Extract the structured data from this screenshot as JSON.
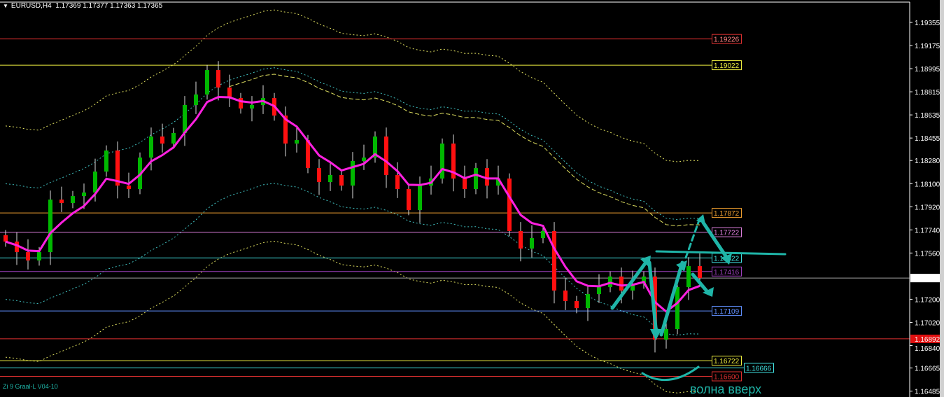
{
  "header": {
    "symbol": "EURUSD,H4",
    "ohlc": "1.17369 1.17377 1.17363 1.17365"
  },
  "indicator_name": "Zi 9 Graal-L V04-10",
  "annotation_text": "волна вверх",
  "colors": {
    "bull": "#00b800",
    "bear": "#ff1010",
    "ma": "#ff20e0",
    "annotation": "#1fb5a8",
    "grid_axis": "#ffffff"
  },
  "chart_data": {
    "type": "candlestick",
    "ylim": [
      1.164,
      1.1955
    ],
    "y_ticks": [
      "1.19355",
      "1.19175",
      "1.18995",
      "1.18815",
      "1.18635",
      "1.18455",
      "1.18280",
      "1.18100",
      "1.17920",
      "1.17740",
      "1.17560",
      "1.17200",
      "1.17020",
      "1.16840",
      "1.16665",
      "1.16485"
    ],
    "current_price": "1.17365",
    "closes": [
      1.17649,
      1.17567,
      1.17502,
      1.17567,
      1.17976,
      1.17949,
      1.18003,
      1.18031,
      1.18194,
      1.18358,
      1.18085,
      1.18058,
      1.18303,
      1.18467,
      1.18412,
      1.18494,
      1.18712,
      1.18794,
      1.18984,
      1.18848,
      1.18766,
      1.18685,
      1.18712,
      1.18766,
      1.1863,
      1.18412,
      1.18439,
      1.18221,
      1.18112,
      1.18167,
      1.18085,
      1.18276,
      1.18303,
      1.18467,
      1.18167,
      1.18058,
      1.17894,
      1.18085,
      1.1814,
      1.18412,
      1.1814,
      1.18058,
      1.18221,
      1.18085,
      1.1814,
      1.17731,
      1.17595,
      1.17676,
      1.17731,
      1.17268,
      1.17186,
      1.17131,
      1.1724,
      1.17295,
      1.17377,
      1.17268,
      1.17322,
      1.17377,
      1.16886,
      1.16968,
      1.17295,
      1.17458,
      1.17365
    ],
    "levels": [
      {
        "price": "1.19226",
        "color": "#e03030",
        "text": "#ff8080"
      },
      {
        "price": "1.19022",
        "color": "#f0f040",
        "text": "#f0f040"
      },
      {
        "price": "1.17872",
        "color": "#f0a030",
        "text": "#f0a030"
      },
      {
        "price": "1.17722",
        "color": "#e080e0",
        "text": "#e080e0"
      },
      {
        "price": "1.17522",
        "color": "#40e0e0",
        "text": "#40e0e0"
      },
      {
        "price": "1.17416",
        "color": "#a040c0",
        "text": "#a040c0"
      },
      {
        "price": "1.17109",
        "color": "#6090ff",
        "text": "#6090ff"
      },
      {
        "price": "1.16722",
        "color": "#f0f040",
        "text": "#f0f040"
      },
      {
        "price": "1.16666",
        "color": "#40e0e0",
        "text": "#40e0e0"
      },
      {
        "price": "1.16600",
        "color": "#e03030",
        "text": "#e03030"
      }
    ],
    "red_line": "1.16892"
  }
}
